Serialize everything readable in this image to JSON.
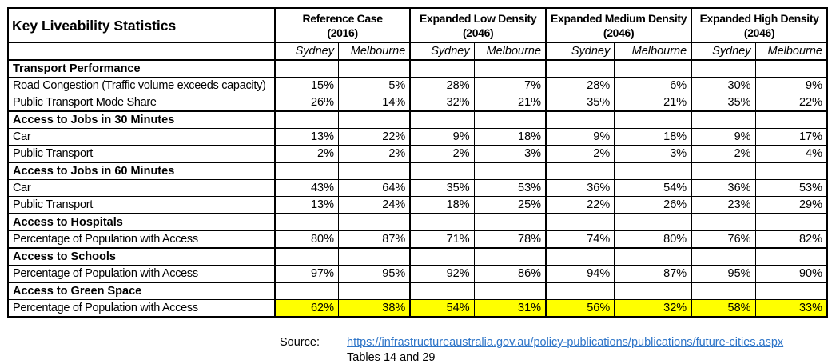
{
  "table": {
    "title": "Key Liveability Statistics",
    "groups": [
      {
        "label": "Reference Case",
        "year": "(2016)"
      },
      {
        "label": "Expanded Low Density",
        "year": "(2046)"
      },
      {
        "label": "Expanded Medium Density",
        "year": "(2046)"
      },
      {
        "label": "Expanded High Density",
        "year": "(2046)"
      }
    ],
    "city_headers": [
      "Sydney",
      "Melbourne",
      "Sydney",
      "Melbourne",
      "Sydney",
      "Melbourne",
      "Sydney",
      "Melbourne"
    ],
    "highlight_color": "#FFFF00",
    "rows": [
      {
        "type": "section",
        "label": "Transport Performance"
      },
      {
        "type": "data",
        "label": "Road Congestion (Traffic volume exceeds capacity)",
        "values": [
          "15%",
          "5%",
          "28%",
          "7%",
          "28%",
          "6%",
          "30%",
          "9%"
        ]
      },
      {
        "type": "data",
        "label": "Public Transport Mode Share",
        "values": [
          "26%",
          "14%",
          "32%",
          "21%",
          "35%",
          "21%",
          "35%",
          "22%"
        ]
      },
      {
        "type": "section",
        "label": "Access to Jobs in 30 Minutes"
      },
      {
        "type": "data",
        "label": "Car",
        "values": [
          "13%",
          "22%",
          "9%",
          "18%",
          "9%",
          "18%",
          "9%",
          "17%"
        ]
      },
      {
        "type": "data",
        "label": "Public Transport",
        "values": [
          "2%",
          "2%",
          "2%",
          "3%",
          "2%",
          "3%",
          "2%",
          "4%"
        ]
      },
      {
        "type": "section",
        "label": "Access to Jobs in 60 Minutes"
      },
      {
        "type": "data",
        "label": "Car",
        "values": [
          "43%",
          "64%",
          "35%",
          "53%",
          "36%",
          "54%",
          "36%",
          "53%"
        ]
      },
      {
        "type": "data",
        "label": "Public Transport",
        "values": [
          "13%",
          "24%",
          "18%",
          "25%",
          "22%",
          "26%",
          "23%",
          "29%"
        ]
      },
      {
        "type": "section",
        "label": "Access to Hospitals"
      },
      {
        "type": "data",
        "label": "Percentage of Population with Access",
        "values": [
          "80%",
          "87%",
          "71%",
          "78%",
          "74%",
          "80%",
          "76%",
          "82%"
        ]
      },
      {
        "type": "section",
        "label": "Access to Schools"
      },
      {
        "type": "data",
        "label": "Percentage of Population with Access",
        "values": [
          "97%",
          "95%",
          "92%",
          "86%",
          "94%",
          "87%",
          "95%",
          "90%"
        ]
      },
      {
        "type": "section",
        "label": "Access to Green Space"
      },
      {
        "type": "data",
        "label": "Percentage of Population with Access",
        "highlight": true,
        "values": [
          "62%",
          "38%",
          "54%",
          "31%",
          "56%",
          "32%",
          "58%",
          "33%"
        ]
      }
    ]
  },
  "source": {
    "label": "Source:",
    "link": "https://infrastructureaustralia.gov.au/policy-publications/publications/future-cities.aspx",
    "link_color": "#2E75C8",
    "note": "Tables 14 and 29"
  }
}
